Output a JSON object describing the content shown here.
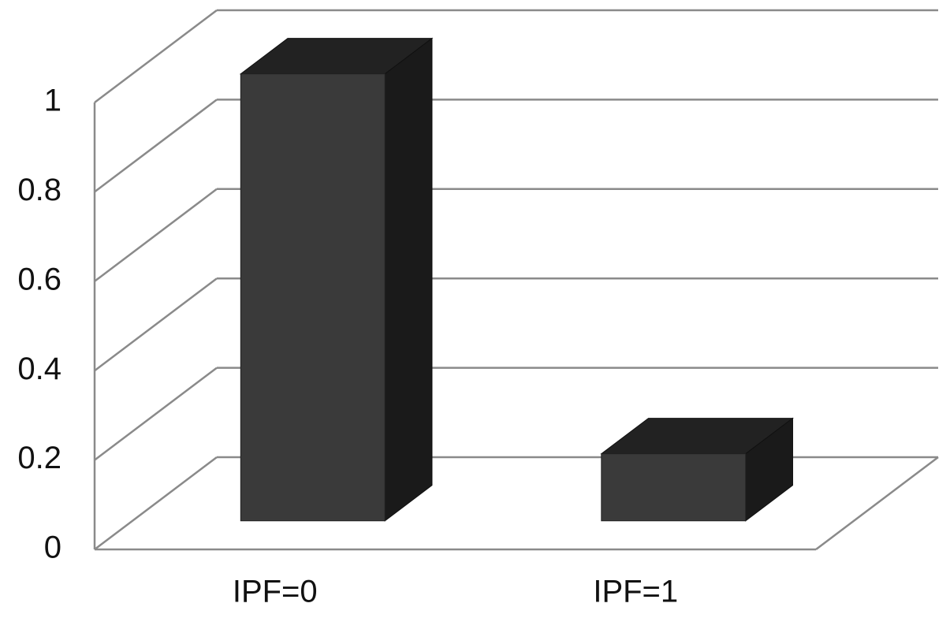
{
  "chart_data": {
    "type": "bar",
    "categories": [
      "IPF=0",
      "IPF=1"
    ],
    "values": [
      1.0,
      0.15
    ],
    "color": "#3a3a3a",
    "ylim": [
      0,
      1
    ],
    "yticks": [
      0,
      0.2,
      0.4,
      0.6,
      0.8,
      1
    ],
    "grid": true
  }
}
